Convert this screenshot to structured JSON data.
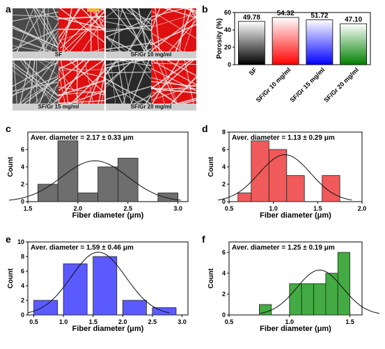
{
  "panel_labels": {
    "a": "a",
    "b": "b",
    "c": "c",
    "d": "d",
    "e": "e",
    "f": "f"
  },
  "micrographs": [
    {
      "caption": "SF"
    },
    {
      "caption": "SF/Gr 10 mg/ml"
    },
    {
      "caption": "SF/Gr 15 mg/ml"
    },
    {
      "caption": "SF/Gr 20 mg/ml"
    }
  ],
  "chart_data": [
    {
      "panel": "b",
      "type": "bar",
      "ylabel": "Porosity (%)",
      "ylim": [
        0,
        60
      ],
      "yticks": [
        0,
        20,
        40,
        60
      ],
      "categories": [
        "SF",
        "SF/Gr 10 mg/ml",
        "SF/Gr 15 mg/ml",
        "SF/Gr 20 mg/ml"
      ],
      "values": [
        49.78,
        54.32,
        51.72,
        47.1
      ],
      "value_labels": [
        "49.78",
        "54.32",
        "51.72",
        "47.10"
      ],
      "colors": [
        "#000000",
        "#ff0000",
        "#0000ff",
        "#008000"
      ],
      "grid": false
    },
    {
      "panel": "c",
      "type": "bar",
      "annotation": "Aver. diameter = 2.17  ± 0.33 μm",
      "xlabel": "Fiber diameter (μm)",
      "ylabel": "Count",
      "xlim": [
        1.5,
        3.1
      ],
      "ylim": [
        0,
        8
      ],
      "xticks": [
        1.5,
        2.0,
        2.5,
        3.0
      ],
      "xtick_labels": [
        "1.5",
        "2.0",
        "2.5",
        "3.0"
      ],
      "yticks": [
        0,
        2,
        4,
        6
      ],
      "bins": [
        [
          1.6,
          1.8
        ],
        [
          1.8,
          2.0
        ],
        [
          2.0,
          2.2
        ],
        [
          2.2,
          2.4
        ],
        [
          2.4,
          2.6
        ],
        [
          2.8,
          3.0
        ]
      ],
      "values": [
        2,
        7,
        1,
        4,
        5,
        1
      ],
      "fit": {
        "mean": 2.17,
        "sd": 0.33,
        "peak": 4.7
      },
      "color": "#6e6e6e",
      "grid": false
    },
    {
      "panel": "d",
      "type": "bar",
      "annotation": "Aver. diameter = 1.13  ± 0.29 μm",
      "xlabel": "Fiber diameter (μm)",
      "ylabel": "Count",
      "xlim": [
        0.5,
        2.0
      ],
      "ylim": [
        0,
        8
      ],
      "xticks": [
        0.5,
        1.0,
        1.5,
        2.0
      ],
      "xtick_labels": [
        "0.5",
        "1.0",
        "1.5",
        "2.0"
      ],
      "yticks": [
        0,
        2,
        4,
        6,
        8
      ],
      "bins": [
        [
          0.6,
          0.75
        ],
        [
          0.75,
          0.95
        ],
        [
          0.95,
          1.15
        ],
        [
          1.15,
          1.35
        ],
        [
          1.55,
          1.75
        ]
      ],
      "values": [
        1,
        7,
        6,
        3,
        3
      ],
      "fit": {
        "mean": 1.13,
        "sd": 0.29,
        "peak": 5.4
      },
      "color": "#f05a5a",
      "grid": false
    },
    {
      "panel": "e",
      "type": "bar",
      "annotation": "Aver. diameter = 1.59  ± 0.46 μm",
      "xlabel": "Fiber diameter (μm)",
      "ylabel": "Count",
      "xlim": [
        0.4,
        3.1
      ],
      "ylim": [
        0,
        10
      ],
      "xticks": [
        0.5,
        1.0,
        1.5,
        2.0,
        2.5,
        3.0
      ],
      "xtick_labels": [
        "0.5",
        "1.0",
        "1.5",
        "2.0",
        "2.5",
        "3.0"
      ],
      "yticks": [
        0,
        2,
        4,
        6,
        8,
        10
      ],
      "bins": [
        [
          0.5,
          0.9
        ],
        [
          1.0,
          1.4
        ],
        [
          1.5,
          1.9
        ],
        [
          2.0,
          2.4
        ],
        [
          2.5,
          2.9
        ]
      ],
      "values": [
        2,
        7,
        8,
        2,
        1
      ],
      "fit": {
        "mean": 1.59,
        "sd": 0.46,
        "peak": 8.6
      },
      "color": "#5a5aff",
      "grid": false
    },
    {
      "panel": "f",
      "type": "bar",
      "annotation": "Aver. diameter = 1.25  ± 0.19 μm",
      "xlabel": "Fiber diameter (μm)",
      "ylabel": "Count",
      "xlim": [
        0.5,
        1.6
      ],
      "ylim": [
        0,
        7
      ],
      "xticks": [
        0.5,
        1.0,
        1.5
      ],
      "xtick_labels": [
        "0.5",
        "1.0",
        "1.5"
      ],
      "yticks": [
        0,
        2,
        4,
        6
      ],
      "bins": [
        [
          0.75,
          0.85
        ],
        [
          1.0,
          1.1
        ],
        [
          1.1,
          1.2
        ],
        [
          1.2,
          1.3
        ],
        [
          1.3,
          1.4
        ],
        [
          1.4,
          1.5
        ]
      ],
      "values": [
        1,
        3,
        3,
        3,
        4,
        6
      ],
      "fit": {
        "mean": 1.25,
        "sd": 0.19,
        "peak": 4.3
      },
      "color": "#44aa44",
      "grid": false
    }
  ]
}
